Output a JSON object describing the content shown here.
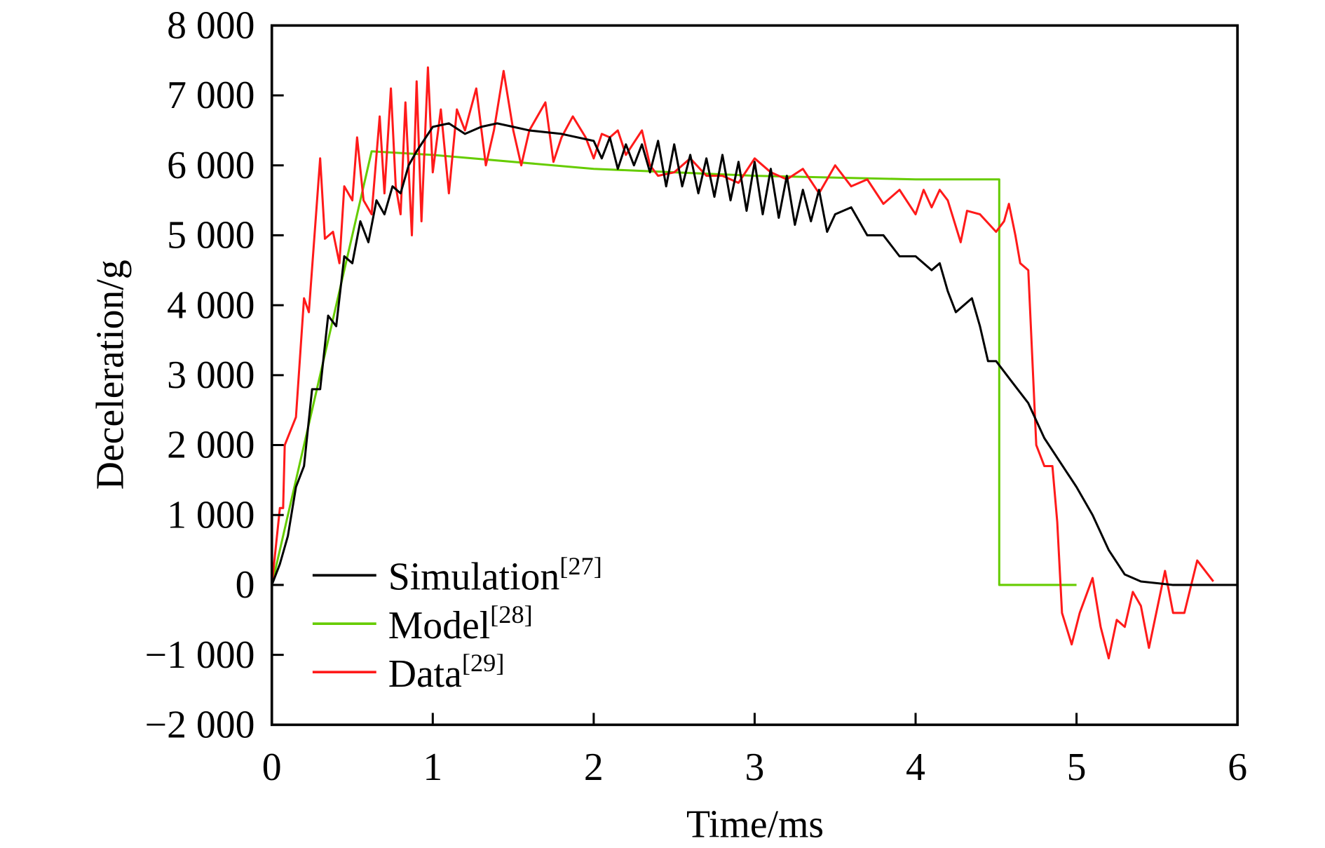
{
  "chart_data": {
    "type": "line",
    "title": "",
    "xlabel": "Time/ms",
    "ylabel": "Deceleration/g",
    "xlim": [
      0,
      6
    ],
    "ylim": [
      -2000,
      8000
    ],
    "xticks": [
      0,
      1,
      2,
      3,
      4,
      5,
      6
    ],
    "xtick_labels": [
      "0",
      "1",
      "2",
      "3",
      "4",
      "5",
      "6"
    ],
    "yticks": [
      -2000,
      -1000,
      0,
      1000,
      2000,
      3000,
      4000,
      5000,
      6000,
      7000,
      8000
    ],
    "ytick_labels": [
      "−2 000",
      "−1 000",
      "0",
      "1 000",
      "2 000",
      "3 000",
      "4 000",
      "5 000",
      "6 000",
      "7 000",
      "8 000"
    ],
    "grid": false,
    "legend_position": "bottom-left",
    "series": [
      {
        "name": "Simulation",
        "ref": "[27]",
        "color": "#000000",
        "x": [
          0,
          0.05,
          0.1,
          0.15,
          0.2,
          0.25,
          0.3,
          0.35,
          0.4,
          0.45,
          0.5,
          0.55,
          0.6,
          0.65,
          0.7,
          0.75,
          0.8,
          0.85,
          0.9,
          1.0,
          1.1,
          1.2,
          1.3,
          1.4,
          1.5,
          1.6,
          1.8,
          2.0,
          2.05,
          2.1,
          2.15,
          2.2,
          2.25,
          2.3,
          2.35,
          2.4,
          2.45,
          2.5,
          2.55,
          2.6,
          2.65,
          2.7,
          2.75,
          2.8,
          2.85,
          2.9,
          2.95,
          3.0,
          3.05,
          3.1,
          3.15,
          3.2,
          3.25,
          3.3,
          3.35,
          3.4,
          3.45,
          3.5,
          3.6,
          3.7,
          3.8,
          3.9,
          4.0,
          4.1,
          4.15,
          4.2,
          4.25,
          4.35,
          4.4,
          4.45,
          4.5,
          4.6,
          4.7,
          4.8,
          5.0,
          5.1,
          5.2,
          5.3,
          5.4,
          5.6,
          6.0
        ],
        "y": [
          0,
          300,
          700,
          1400,
          1700,
          2800,
          2800,
          3850,
          3700,
          4700,
          4600,
          5200,
          4900,
          5500,
          5300,
          5700,
          5600,
          6000,
          6200,
          6550,
          6600,
          6450,
          6550,
          6600,
          6550,
          6500,
          6450,
          6350,
          6100,
          6400,
          5950,
          6300,
          6000,
          6300,
          5900,
          6350,
          5700,
          6300,
          5700,
          6150,
          5600,
          6100,
          5550,
          6150,
          5500,
          6050,
          5350,
          6050,
          5300,
          5950,
          5250,
          5850,
          5150,
          5650,
          5200,
          5650,
          5050,
          5300,
          5400,
          5000,
          5000,
          4700,
          4700,
          4500,
          4600,
          4200,
          3900,
          4100,
          3700,
          3200,
          3200,
          2900,
          2600,
          2100,
          1400,
          1000,
          500,
          150,
          50,
          0,
          0
        ]
      },
      {
        "name": "Model",
        "ref": "[28]",
        "color": "#66cc00",
        "x": [
          0,
          0.62,
          1.0,
          2.0,
          3.0,
          4.0,
          4.52,
          4.52,
          5.0
        ],
        "y": [
          0,
          6200,
          6150,
          5950,
          5850,
          5800,
          5800,
          0,
          0
        ]
      },
      {
        "name": "Data",
        "ref": "[29]",
        "color": "#ff1a1a",
        "x": [
          0,
          0.05,
          0.07,
          0.08,
          0.15,
          0.2,
          0.23,
          0.3,
          0.33,
          0.38,
          0.42,
          0.45,
          0.5,
          0.53,
          0.57,
          0.62,
          0.67,
          0.7,
          0.74,
          0.77,
          0.8,
          0.83,
          0.87,
          0.9,
          0.93,
          0.97,
          1.0,
          1.05,
          1.1,
          1.15,
          1.2,
          1.27,
          1.33,
          1.38,
          1.44,
          1.5,
          1.55,
          1.6,
          1.7,
          1.75,
          1.8,
          1.87,
          1.95,
          2.0,
          2.05,
          2.1,
          2.15,
          2.2,
          2.3,
          2.35,
          2.4,
          2.5,
          2.6,
          2.7,
          2.8,
          2.9,
          3.0,
          3.1,
          3.2,
          3.3,
          3.4,
          3.5,
          3.6,
          3.7,
          3.8,
          3.9,
          4.0,
          4.05,
          4.1,
          4.15,
          4.2,
          4.28,
          4.32,
          4.4,
          4.5,
          4.55,
          4.58,
          4.62,
          4.65,
          4.7,
          4.75,
          4.8,
          4.85,
          4.88,
          4.91,
          4.97,
          5.02,
          5.1,
          5.15,
          5.2,
          5.25,
          5.3,
          5.35,
          5.4,
          5.45,
          5.55,
          5.6,
          5.67,
          5.75,
          5.85
        ],
        "y": [
          0,
          1100,
          1100,
          2000,
          2400,
          4100,
          3900,
          6100,
          4950,
          5050,
          4600,
          5700,
          5500,
          6400,
          5500,
          5300,
          6700,
          5600,
          7100,
          5700,
          5300,
          6900,
          5000,
          7200,
          5200,
          7400,
          5900,
          6800,
          5600,
          6800,
          6500,
          7100,
          6000,
          6500,
          7350,
          6500,
          6000,
          6500,
          6900,
          6050,
          6400,
          6700,
          6400,
          6100,
          6450,
          6400,
          6500,
          6150,
          6500,
          6000,
          5850,
          5900,
          6100,
          5850,
          5850,
          5750,
          6100,
          5900,
          5800,
          5950,
          5600,
          6000,
          5700,
          5800,
          5450,
          5650,
          5300,
          5650,
          5400,
          5650,
          5500,
          4900,
          5350,
          5300,
          5050,
          5200,
          5450,
          5000,
          4600,
          4500,
          2000,
          1700,
          1700,
          900,
          -400,
          -850,
          -400,
          100,
          -600,
          -1050,
          -500,
          -600,
          -100,
          -300,
          -900,
          200,
          -400,
          -400,
          350,
          50
        ]
      }
    ]
  }
}
